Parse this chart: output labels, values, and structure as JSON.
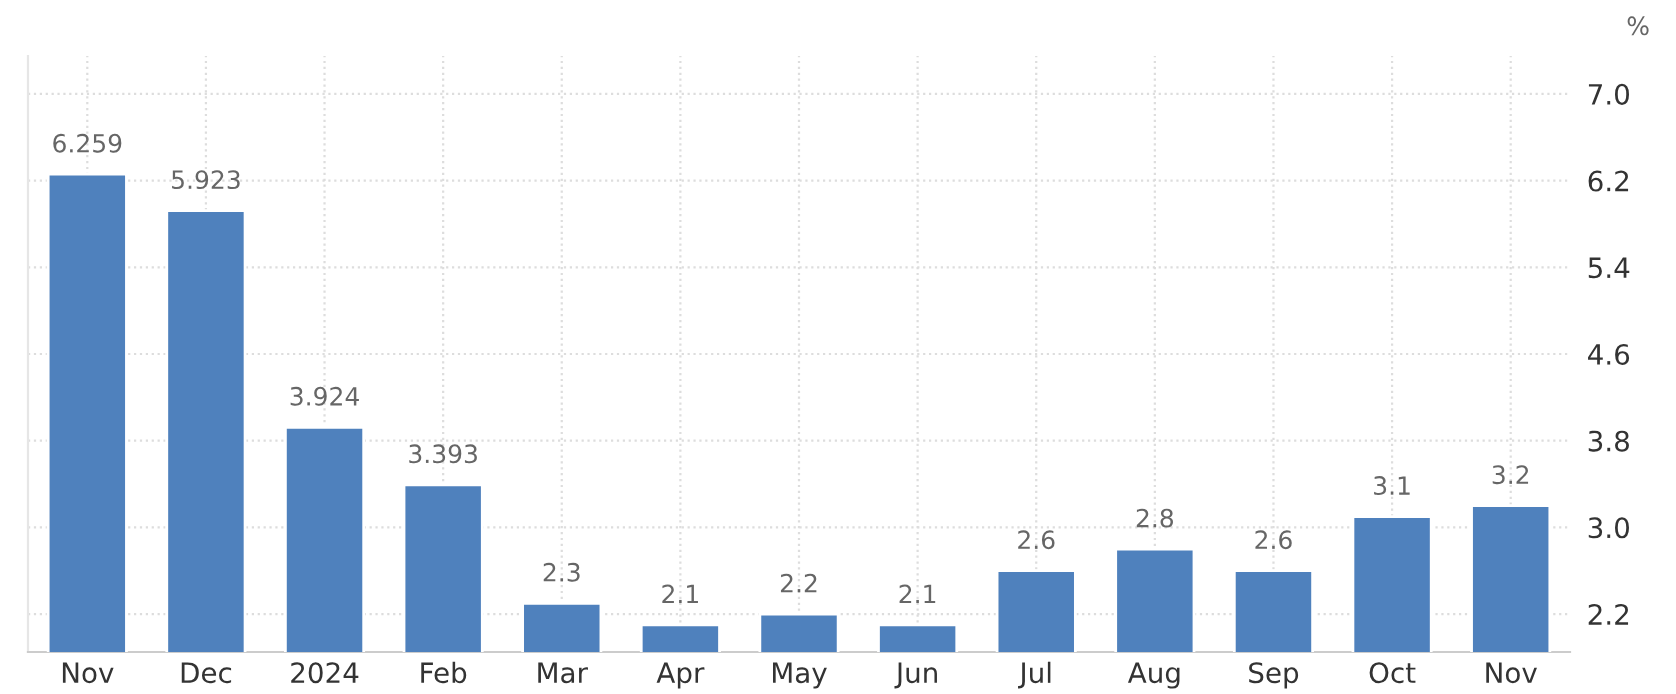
{
  "chart_data": {
    "type": "bar",
    "ylabel": "%",
    "categories": [
      "Nov",
      "Dec",
      "2024",
      "Feb",
      "Mar",
      "Apr",
      "May",
      "Jun",
      "Jul",
      "Aug",
      "Sep",
      "Oct",
      "Nov"
    ],
    "values": [
      6.259,
      5.923,
      3.924,
      3.393,
      2.3,
      2.1,
      2.2,
      2.1,
      2.6,
      2.8,
      2.6,
      3.1,
      3.2
    ],
    "color": "#4f81bd",
    "data_labels": true,
    "ylim": [
      1.85,
      7.35
    ],
    "yticks": [
      {
        "value": 2.2,
        "label": "2.2"
      },
      {
        "value": 3.0,
        "label": "3.0"
      },
      {
        "value": 3.8,
        "label": "3.8"
      },
      {
        "value": 4.6,
        "label": "4.6"
      },
      {
        "value": 5.4,
        "label": "5.4"
      },
      {
        "value": 6.2,
        "label": "6.2"
      },
      {
        "value": 7.0,
        "label": "7.0"
      }
    ],
    "grid": true,
    "legend": false
  }
}
